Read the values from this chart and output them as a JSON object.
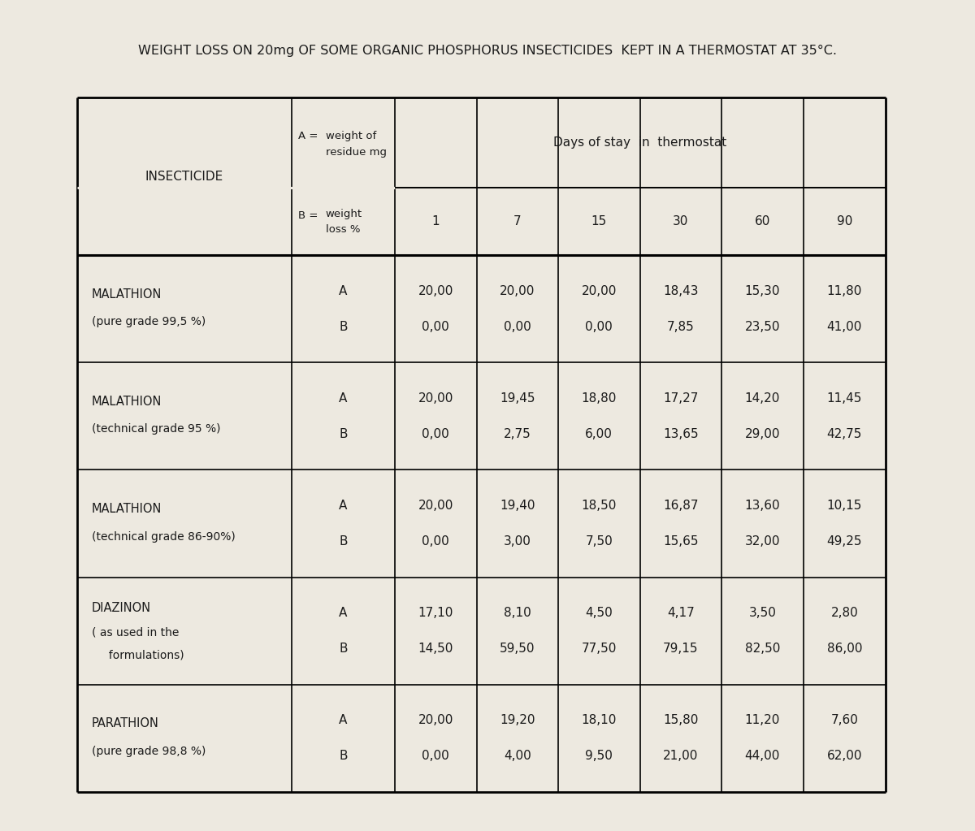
{
  "title": "WEIGHT LOSS ON 20mg OF SOME ORGANIC PHOSPHORUS INSECTICIDES  KEPT IN A THERMOSTAT AT 35°C.",
  "background_color": "#ede9e0",
  "text_color": "#1a1a1a",
  "header_days": "Days of stay  in  thermostat",
  "day_cols": [
    "1",
    "7",
    "15",
    "30",
    "60",
    "90"
  ],
  "rows": [
    {
      "name_line1": "MALATHION",
      "name_line2": "(pure grade 99,5 %)",
      "name_line3": null,
      "values_A": [
        "20,00",
        "20,00",
        "20,00",
        "18,43",
        "15,30",
        "11,80"
      ],
      "values_B": [
        "0,00",
        "0,00",
        "0,00",
        "7,85",
        "23,50",
        "41,00"
      ]
    },
    {
      "name_line1": "MALATHION",
      "name_line2": "(technical grade 95 %)",
      "name_line3": null,
      "values_A": [
        "20,00",
        "19,45",
        "18,80",
        "17,27",
        "14,20",
        "11,45"
      ],
      "values_B": [
        "0,00",
        "2,75",
        "6,00",
        "13,65",
        "29,00",
        "42,75"
      ]
    },
    {
      "name_line1": "MALATHION",
      "name_line2": "(technical grade 86-90%)",
      "name_line3": null,
      "values_A": [
        "20,00",
        "19,40",
        "18,50",
        "16,87",
        "13,60",
        "10,15"
      ],
      "values_B": [
        "0,00",
        "3,00",
        "7,50",
        "15,65",
        "32,00",
        "49,25"
      ]
    },
    {
      "name_line1": "DIAZINON",
      "name_line2": "( as used in the",
      "name_line3": "  formulations)",
      "values_A": [
        "17,10",
        "8,10",
        "4,50",
        "4,17",
        "3,50",
        "2,80"
      ],
      "values_B": [
        "14,50",
        "59,50",
        "77,50",
        "79,15",
        "82,50",
        "86,00"
      ]
    },
    {
      "name_line1": "PARATHION",
      "name_line2": "(pure grade 98,8 %)",
      "name_line3": null,
      "values_A": [
        "20,00",
        "19,20",
        "18,10",
        "15,80",
        "11,20",
        "7,60"
      ],
      "values_B": [
        "0,00",
        "4,00",
        "9,50",
        "21,00",
        "44,00",
        "62,00"
      ]
    }
  ]
}
